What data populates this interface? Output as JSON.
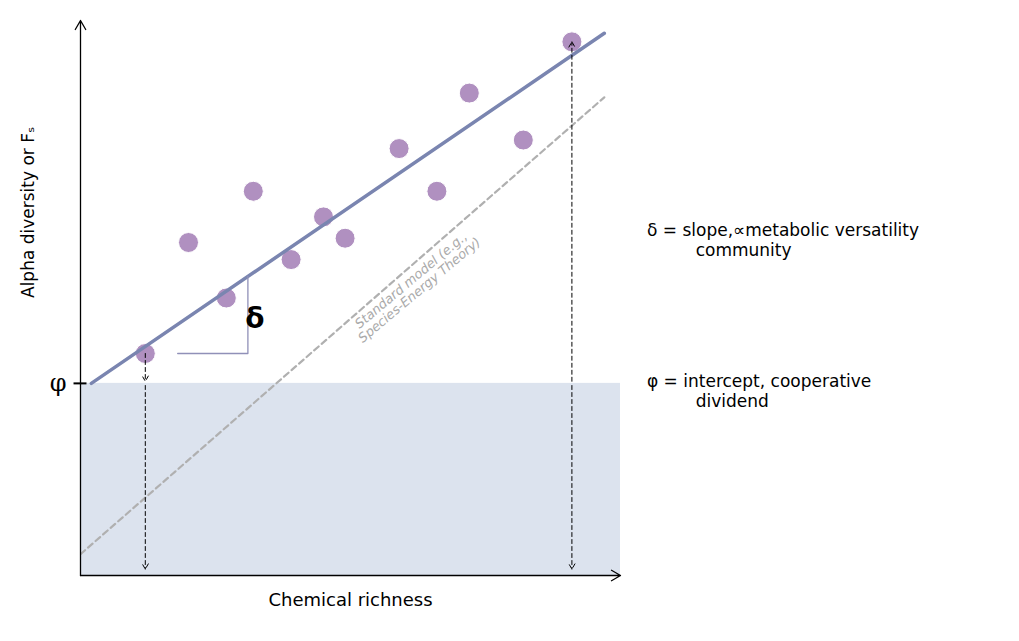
{
  "chart_data": {
    "type": "scatter",
    "xlabel": "Chemical richness",
    "ylabel": "Alpha diversity or Fₛ",
    "xlim": [
      0,
      10
    ],
    "ylim": [
      -3,
      10
    ],
    "tick_labels": false,
    "series": [
      {
        "type": "scatter",
        "color": "#b090c0",
        "x": [
          1.2,
          2.0,
          2.7,
          3.2,
          3.9,
          4.5,
          4.9,
          5.9,
          6.6,
          7.2,
          8.2,
          9.1
        ],
        "values": [
          2.2,
          4.8,
          3.5,
          6.0,
          4.4,
          5.4,
          4.9,
          7.0,
          6.0,
          8.3,
          7.2,
          9.5
        ]
      },
      {
        "type": "line",
        "line_style": "solid",
        "color": "#7a85b0",
        "x": [
          0.2,
          9.7
        ],
        "values": [
          1.5,
          9.7
        ]
      },
      {
        "type": "line",
        "line_style": "dashed",
        "color": "#b0b0b0",
        "x": [
          0.0,
          9.7
        ],
        "values": [
          -2.5,
          8.2
        ]
      },
      {
        "type": "line",
        "line_style": "solid",
        "color": "#9090b8",
        "x": [
          1.8,
          3.1,
          3.1
        ],
        "values": [
          2.2,
          2.2,
          4.003157894736842
        ]
      }
    ],
    "spans": [
      {
        "y0": -3,
        "y1": 1.5,
        "color": "#dce3ee"
      }
    ],
    "y_markers": [
      {
        "value": 1.5,
        "label": "φ"
      }
    ],
    "arrows": [
      {
        "x": 1.2,
        "from": 2.2,
        "to": 1.55
      },
      {
        "x": 1.2,
        "from": 1.45,
        "to": -2.85
      },
      {
        "x": 9.1,
        "from": 1.55,
        "to": 9.5
      },
      {
        "x": 9.1,
        "from": 1.45,
        "to": -2.85
      }
    ],
    "annotations": [
      {
        "text": "δ",
        "x": 3.05,
        "y": 3.0
      },
      {
        "text": "Standard model (e.g.,\nSpecies-Energy Theory)",
        "x": 6.2,
        "y": 3.8,
        "color": "#aaaaaa"
      },
      {
        "text": "δ = slope,∝metabolic versatility\n         community"
      },
      {
        "text": "φ = intercept, cooperative\n         dividend"
      }
    ]
  }
}
